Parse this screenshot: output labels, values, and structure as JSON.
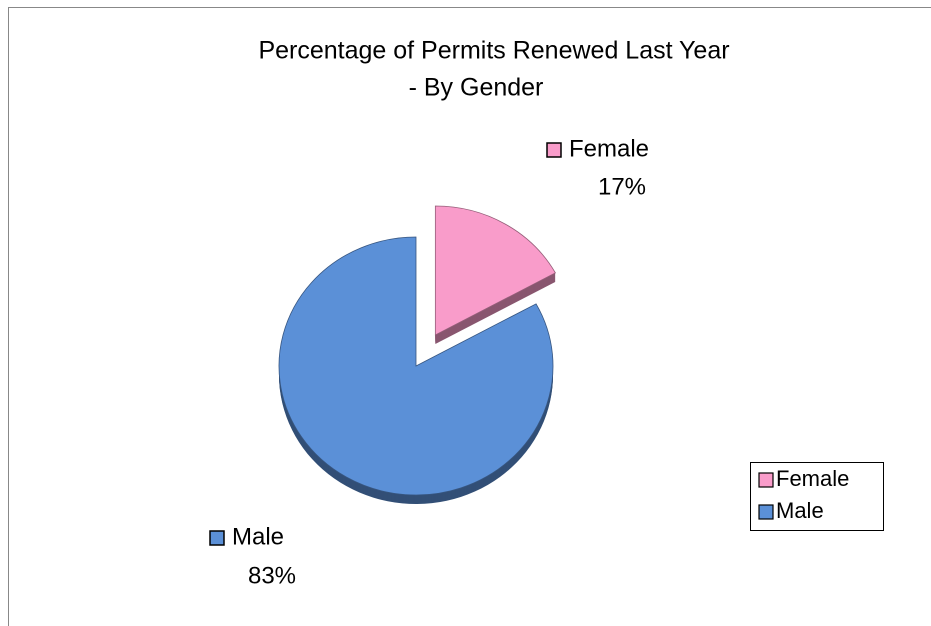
{
  "chart_data": {
    "type": "pie",
    "title": [
      "Percentage of Permits Renewed Last Year",
      "- By Gender"
    ],
    "categories": [
      "Female",
      "Male"
    ],
    "values": [
      17,
      83
    ],
    "value_labels": [
      "17%",
      "83%"
    ],
    "colors": [
      "#f99cca",
      "#5b90d7"
    ],
    "legend": "right"
  }
}
